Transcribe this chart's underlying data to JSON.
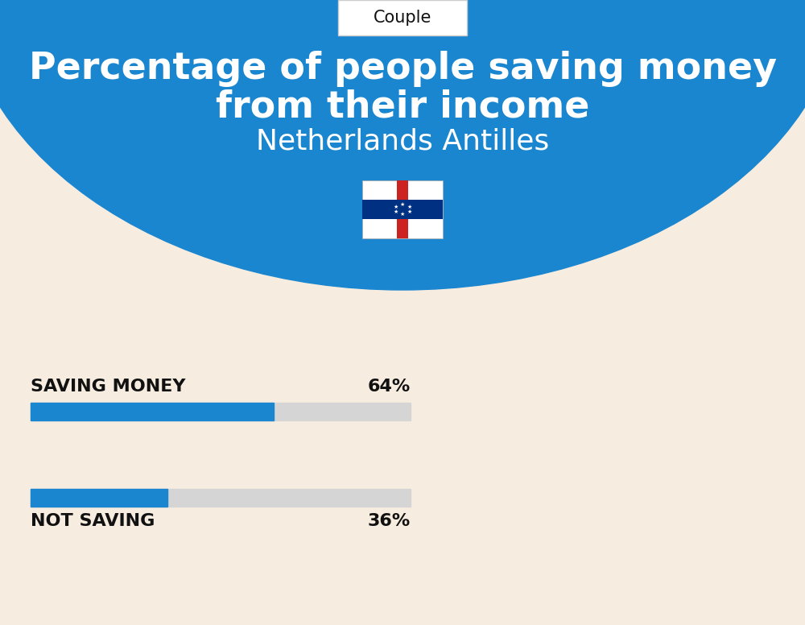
{
  "title_line1": "Percentage of people saving money",
  "title_line2": "from their income",
  "subtitle": "Netherlands Antilles",
  "tab_label": "Couple",
  "saving_label": "SAVING MONEY",
  "saving_value": 64,
  "saving_pct_label": "64%",
  "not_saving_label": "NOT SAVING",
  "not_saving_value": 36,
  "not_saving_pct_label": "36%",
  "bar_blue": "#1a86d0",
  "bar_gray": "#d5d5d5",
  "bg_top": "#1a86d0",
  "bg_bottom": "#f7ece0",
  "text_white": "#ffffff",
  "text_dark": "#111111",
  "tab_border": "#cccccc",
  "fig_width": 10.0,
  "fig_height": 7.76,
  "dpi": 100
}
